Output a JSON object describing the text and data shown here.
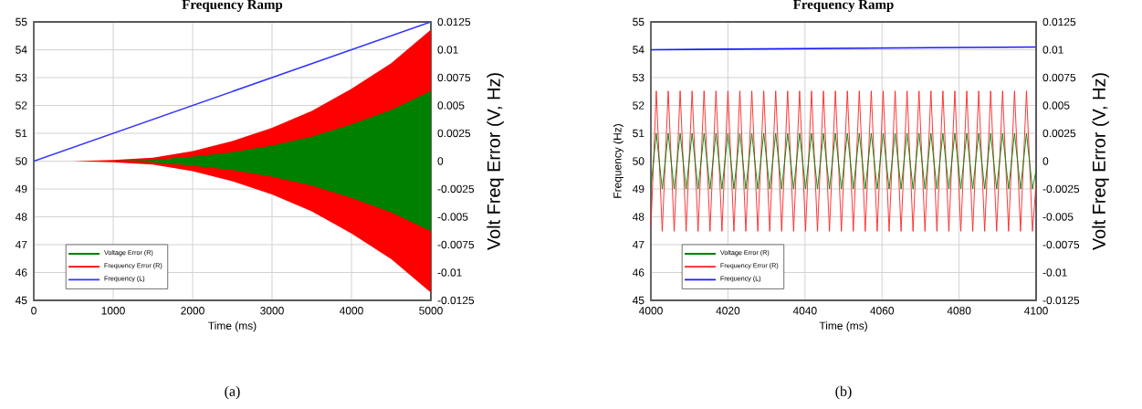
{
  "chart_data": [
    {
      "type": "line",
      "title": "Frequency Ramp",
      "xlabel": "Time (ms)",
      "y2label": "Volt Freq Error  (V, Hz)",
      "annotations": [
        "(a)"
      ],
      "xlim": [
        0,
        5000
      ],
      "xticks": [
        0,
        1000,
        2000,
        3000,
        4000,
        5000
      ],
      "ylim": [
        45,
        55
      ],
      "yticks": [
        45,
        46,
        47,
        48,
        49,
        50,
        51,
        52,
        53,
        54,
        55
      ],
      "y2lim": [
        -0.0125,
        0.0125
      ],
      "y2ticks": [
        -0.0125,
        -0.01,
        -0.0075,
        -0.005,
        -0.0025,
        0,
        0.0025,
        0.005,
        0.0075,
        0.01,
        0.0125
      ],
      "grid": true,
      "legend": "bottom left",
      "series": [
        {
          "name": "Voltage Error (R)",
          "color": "#008000",
          "axis": "y2",
          "x": [
            0,
            500,
            1000,
            1500,
            2000,
            2500,
            3000,
            3500,
            4000,
            4500,
            5000
          ],
          "values": [
            null,
            null,
            null,
            null,
            null,
            null,
            null,
            null,
            null,
            null,
            null
          ],
          "upper": [
            0,
            0,
            0,
            0.0001,
            0.0004,
            0.0008,
            0.0014,
            0.0022,
            0.0033,
            0.0046,
            0.0063
          ],
          "lower": [
            0,
            0,
            0,
            -0.0001,
            -0.0004,
            -0.0008,
            -0.0014,
            -0.0022,
            -0.0033,
            -0.0046,
            -0.0063
          ]
        },
        {
          "name": "Frequency Error (R)",
          "color": "#ff0000",
          "axis": "y2",
          "x": [
            0,
            500,
            1000,
            1500,
            2000,
            2500,
            3000,
            3500,
            4000,
            4500,
            5000
          ],
          "values": [
            null,
            null,
            null,
            null,
            null,
            null,
            null,
            null,
            null,
            null,
            null
          ],
          "upper": [
            0,
            0,
            0.0001,
            0.0003,
            0.0009,
            0.0018,
            0.003,
            0.0045,
            0.0065,
            0.0088,
            0.0118
          ],
          "lower": [
            0,
            0,
            -0.0001,
            -0.0003,
            -0.0009,
            -0.0018,
            -0.003,
            -0.0045,
            -0.0065,
            -0.0088,
            -0.0118
          ]
        },
        {
          "name": "Frequency (L)",
          "color": "#3333ff",
          "x": [
            0,
            5000
          ],
          "values": [
            50,
            55
          ]
        }
      ]
    },
    {
      "type": "line",
      "title": "Frequency Ramp",
      "xlabel": "Time (ms)",
      "ylabel": "Frequency (Hz)",
      "y2label": "Volt Freq Error  (V, Hz)",
      "annotations": [
        "(b)"
      ],
      "xlim": [
        4000,
        4100
      ],
      "xticks": [
        4000,
        4020,
        4040,
        4060,
        4080,
        4100
      ],
      "ylim": [
        45,
        55
      ],
      "yticks": [
        45,
        46,
        47,
        48,
        49,
        50,
        51,
        52,
        53,
        54,
        55
      ],
      "y2lim": [
        -0.0125,
        0.0125
      ],
      "y2ticks": [
        -0.0125,
        -0.01,
        -0.0075,
        -0.005,
        -0.0025,
        0,
        0.0025,
        0.005,
        0.0075,
        0.01,
        0.0125
      ],
      "grid": true,
      "legend": "bottom left",
      "x": [
        4000,
        4001.4,
        4002.95,
        4004.5,
        4006.05,
        4007.6,
        4009.15,
        4010.7,
        4012.25,
        4013.8,
        4015.35,
        4016.9,
        4018.45,
        4020,
        4021.55,
        4023.1,
        4024.65,
        4026.2,
        4027.75,
        4029.3,
        4030.85,
        4032.4,
        4033.95,
        4035.5,
        4037.05,
        4038.6,
        4040.15,
        4041.7,
        4043.25,
        4044.8,
        4046.35,
        4047.9,
        4049.45,
        4051,
        4052.55,
        4054.1,
        4055.65,
        4057.2,
        4058.75,
        4060.3,
        4061.85,
        4063.4,
        4064.95,
        4066.5,
        4068.05,
        4069.6,
        4071.15,
        4072.7,
        4074.25,
        4075.8,
        4077.35,
        4078.9,
        4080.45,
        4082,
        4083.55,
        4085.1,
        4086.65,
        4088.2,
        4089.75,
        4091.3,
        4092.85,
        4094.4,
        4095.95,
        4097.5,
        4099.05,
        4100
      ],
      "series": [
        {
          "name": "Voltage Error (R)",
          "color": "#008000",
          "axis": "y2",
          "values": [
            -0.0024,
            0.0025,
            -0.0025,
            0.0025,
            -0.0025,
            0.0025,
            -0.0025,
            0.0025,
            -0.0025,
            0.0025,
            -0.0025,
            0.0025,
            -0.0025,
            0.0025,
            -0.0025,
            0.0025,
            -0.0025,
            0.0025,
            -0.0025,
            0.0025,
            -0.0025,
            0.0025,
            -0.0025,
            0.0025,
            -0.0025,
            0.0025,
            -0.0025,
            0.0025,
            -0.0025,
            0.0025,
            -0.0025,
            0.0025,
            -0.0025,
            0.0025,
            -0.0025,
            0.0025,
            -0.0025,
            0.0025,
            -0.0025,
            0.0025,
            -0.0025,
            0.0025,
            -0.0025,
            0.0025,
            -0.0025,
            0.0025,
            -0.0025,
            0.0025,
            -0.0025,
            0.0025,
            -0.0025,
            0.0025,
            -0.0025,
            0.0025,
            -0.0025,
            0.0025,
            -0.0025,
            0.0025,
            -0.0025,
            0.0025,
            -0.0025,
            0.0025,
            -0.0025,
            0.0025,
            -0.0025,
            -0.0008
          ]
        },
        {
          "name": "Frequency Error (R)",
          "color": "#ff2020",
          "axis": "y2",
          "values": [
            -0.006,
            0.0063,
            -0.0063,
            0.0063,
            -0.0063,
            0.0063,
            -0.0063,
            0.0063,
            -0.0063,
            0.0063,
            -0.0063,
            0.0063,
            -0.0063,
            0.0063,
            -0.0063,
            0.0063,
            -0.0063,
            0.0063,
            -0.0063,
            0.0063,
            -0.0063,
            0.0063,
            -0.0063,
            0.0063,
            -0.0063,
            0.0063,
            -0.0063,
            0.0063,
            -0.0063,
            0.0063,
            -0.0063,
            0.0063,
            -0.0063,
            0.0063,
            -0.0063,
            0.0063,
            -0.0063,
            0.0063,
            -0.0063,
            0.0063,
            -0.0063,
            0.0063,
            -0.0063,
            0.0063,
            -0.0063,
            0.0063,
            -0.0063,
            0.0063,
            -0.0063,
            0.0063,
            -0.0063,
            0.0063,
            -0.0063,
            0.0063,
            -0.0063,
            0.0063,
            -0.0063,
            0.0063,
            -0.0063,
            0.0063,
            -0.0063,
            0.0063,
            -0.0063,
            0.0063,
            -0.0063,
            -0.002
          ]
        },
        {
          "name": "Frequency (L)",
          "color": "#1a1aff",
          "x": [
            4000,
            4100
          ],
          "values": [
            54,
            54.1
          ]
        }
      ]
    }
  ]
}
